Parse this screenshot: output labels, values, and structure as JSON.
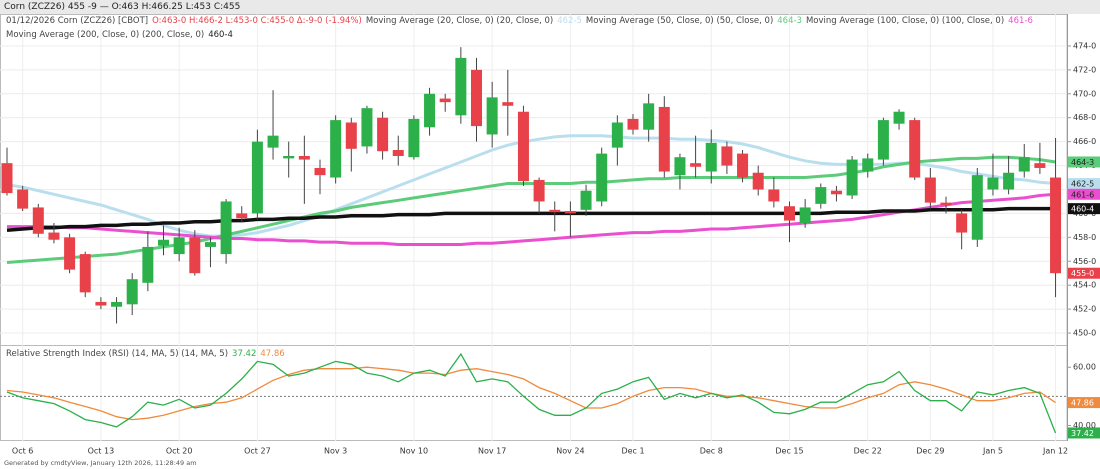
{
  "header": {
    "top_bar": "Corn (ZCZ26) 455 -9 — O:463 H:466.25 L:453 C:455",
    "footer": "Generated by cmdtyView, January 12th 2026, 11:28:49 am"
  },
  "chart_data": [
    {
      "type": "candlestick",
      "title": "01/12/2026 Corn (ZCZ26) [CBOT]",
      "ohlc_text": "O:463-0 H:466-2 L:453-0 C:455-0 Δ:-9-0 (-1.94%)",
      "up_color": "#2bb04a",
      "down_color": "#e8414a",
      "last_label": "455-0",
      "categories": [
        null,
        "Oct 6",
        null,
        null,
        null,
        null,
        "Oct 13",
        null,
        null,
        null,
        null,
        "Oct 20",
        null,
        null,
        null,
        null,
        "Oct 27",
        null,
        null,
        null,
        null,
        "Nov 3",
        null,
        null,
        null,
        null,
        "Nov 10",
        null,
        null,
        null,
        null,
        "Nov 17",
        null,
        null,
        null,
        null,
        "Nov 24",
        null,
        null,
        null,
        "Dec 1",
        null,
        null,
        null,
        null,
        "Dec 8",
        null,
        null,
        null,
        null,
        "Dec 15",
        null,
        null,
        null,
        null,
        "Dec 22",
        null,
        null,
        null,
        "Dec 29",
        null,
        null,
        null,
        "Jan 5",
        null,
        null,
        null,
        "Jan 12"
      ],
      "candles": [
        [
          464.2,
          465.5,
          461.5,
          461.7
        ],
        [
          462,
          462.3,
          460.2,
          460.4
        ],
        [
          460.5,
          460.8,
          458,
          458.3
        ],
        [
          458.4,
          459.2,
          457.5,
          457.8
        ],
        [
          458,
          458.3,
          455,
          455.3
        ],
        [
          456.6,
          456.8,
          453,
          453.4
        ],
        [
          452.6,
          453,
          452,
          452.3
        ],
        [
          452.2,
          453,
          450.8,
          452.6
        ],
        [
          452.4,
          455,
          451.5,
          454.5
        ],
        [
          454.2,
          458.5,
          453.5,
          457.2
        ],
        [
          457.3,
          459,
          456.5,
          457.8
        ],
        [
          456.6,
          458.8,
          456,
          458
        ],
        [
          458,
          458.6,
          454.8,
          455
        ],
        [
          457.2,
          458,
          455.5,
          457.6
        ],
        [
          456.6,
          461.2,
          455.8,
          461
        ],
        [
          460,
          460.6,
          459.3,
          459.6
        ],
        [
          460,
          467,
          459.5,
          466
        ],
        [
          465.5,
          470.3,
          464.5,
          466.5
        ],
        [
          464.6,
          466,
          463,
          464.8
        ],
        [
          464.8,
          466.5,
          460.8,
          464.5
        ],
        [
          463.8,
          464.5,
          461.6,
          463.2
        ],
        [
          463,
          468.2,
          462.5,
          467.8
        ],
        [
          467.6,
          468,
          463.5,
          465.4
        ],
        [
          465.6,
          469,
          465,
          468.8
        ],
        [
          468,
          468.5,
          464.5,
          465.2
        ],
        [
          465.3,
          466.5,
          464,
          464.8
        ],
        [
          464.7,
          468.2,
          464.5,
          467.9
        ],
        [
          467.2,
          470.5,
          466.5,
          470
        ],
        [
          469.6,
          470,
          468.5,
          469.3
        ],
        [
          468.2,
          473.9,
          467.5,
          473
        ],
        [
          472,
          473,
          466,
          467.3
        ],
        [
          466.6,
          471,
          465.5,
          469.7
        ],
        [
          469.3,
          472,
          466.5,
          469
        ],
        [
          468.5,
          469,
          462.3,
          462.7
        ],
        [
          462.8,
          463,
          460,
          461
        ],
        [
          460.3,
          461,
          458.5,
          460.1
        ],
        [
          460.2,
          461,
          458,
          460
        ],
        [
          460.3,
          462.4,
          459.8,
          461.9
        ],
        [
          461,
          465.5,
          460.6,
          465
        ],
        [
          465.5,
          468.2,
          464,
          467.6
        ],
        [
          467.9,
          468.3,
          466.6,
          467
        ],
        [
          467,
          470,
          466,
          469.2
        ],
        [
          468.9,
          469.8,
          463,
          463.5
        ],
        [
          463.2,
          465,
          462,
          464.7
        ],
        [
          464.2,
          466.5,
          463,
          463.9
        ],
        [
          463.5,
          467,
          462.5,
          465.9
        ],
        [
          465.6,
          466,
          463.3,
          464
        ],
        [
          465,
          465.3,
          462.6,
          463
        ],
        [
          463.4,
          464,
          461.5,
          462
        ],
        [
          462,
          463,
          460.5,
          461
        ],
        [
          460.6,
          461,
          457.6,
          459.4
        ],
        [
          459.2,
          461.2,
          458.8,
          460.5
        ],
        [
          460.8,
          462.5,
          460.4,
          462.2
        ],
        [
          461.9,
          462.3,
          461,
          461.6
        ],
        [
          461.5,
          464.8,
          461.2,
          464.5
        ],
        [
          463.5,
          465,
          463,
          464.6
        ],
        [
          464.5,
          468,
          464,
          467.8
        ],
        [
          467.5,
          468.7,
          467,
          468.5
        ],
        [
          467.8,
          468,
          462.8,
          463
        ],
        [
          463,
          463.8,
          460.4,
          460.9
        ],
        [
          460.9,
          461.4,
          460,
          460.7
        ],
        [
          460,
          460.3,
          457,
          458.4
        ],
        [
          457.8,
          463.8,
          457.2,
          463.2
        ],
        [
          462,
          465,
          461.5,
          463
        ],
        [
          462,
          464.8,
          461.6,
          463.4
        ],
        [
          463.5,
          465.8,
          463,
          464.7
        ],
        [
          464.2,
          465.9,
          463.3,
          463.8
        ],
        [
          463,
          466.3,
          453,
          455
        ]
      ],
      "ylim": [
        449,
        475.5
      ],
      "yticks": [
        {
          "value": 450,
          "label": "450-0"
        },
        {
          "value": 452,
          "label": "452-0"
        },
        {
          "value": 454,
          "label": "454-0"
        },
        {
          "value": 456,
          "label": "456-0"
        },
        {
          "value": 458,
          "label": "458-0"
        },
        {
          "value": 460,
          "label": "460-0"
        },
        {
          "value": 462,
          "label": "462-0"
        },
        {
          "value": 464,
          "label": "464-0"
        },
        {
          "value": 466,
          "label": "466-0"
        },
        {
          "value": 468,
          "label": "468-0"
        },
        {
          "value": 470,
          "label": "470-0"
        },
        {
          "value": 472,
          "label": "472-0"
        },
        {
          "value": 474,
          "label": "474-0"
        }
      ],
      "grid": true,
      "series": [
        {
          "name": "Moving Average (20, Close, 0) (20, Close, 0)",
          "color": "#b9dfef",
          "last_label": "462-5",
          "values": [
            462.4,
            462.2,
            461.9,
            461.6,
            461.3,
            461.0,
            460.7,
            460.3,
            459.9,
            459.5,
            459.0,
            458.6,
            458.3,
            458.1,
            458.1,
            458.2,
            458.4,
            458.7,
            459.0,
            459.4,
            459.8,
            460.3,
            460.8,
            461.3,
            461.8,
            462.3,
            462.8,
            463.3,
            463.8,
            464.3,
            464.8,
            465.3,
            465.7,
            466.0,
            466.2,
            466.4,
            466.5,
            466.5,
            466.5,
            466.4,
            466.3,
            466.3,
            466.3,
            466.2,
            466.2,
            466.1,
            466.0,
            465.8,
            465.5,
            465.1,
            464.7,
            464.4,
            464.2,
            464.1,
            464.1,
            464.1,
            464.1,
            464.2,
            464.2,
            464.0,
            463.8,
            463.5,
            463.3,
            463.1,
            462.9,
            462.8,
            462.6,
            462.5
          ]
        },
        {
          "name": "Moving Average (50, Close, 0) (50, Close, 0)",
          "color": "#5ccb7a",
          "last_label": "464-3",
          "values": [
            455.9,
            456.0,
            456.1,
            456.2,
            456.3,
            456.4,
            456.5,
            456.6,
            456.8,
            457.0,
            457.2,
            457.4,
            457.6,
            457.9,
            458.2,
            458.5,
            458.8,
            459.1,
            459.4,
            459.7,
            460.0,
            460.2,
            460.5,
            460.7,
            460.9,
            461.1,
            461.3,
            461.5,
            461.7,
            461.9,
            462.1,
            462.3,
            462.5,
            462.5,
            462.5,
            462.5,
            462.5,
            462.6,
            462.6,
            462.7,
            462.8,
            462.9,
            462.9,
            463.0,
            463.0,
            463.0,
            463.0,
            463.0,
            463.0,
            463.0,
            463.0,
            463.0,
            463.1,
            463.2,
            463.4,
            463.6,
            463.9,
            464.1,
            464.3,
            464.4,
            464.5,
            464.6,
            464.6,
            464.7,
            464.7,
            464.6,
            464.5,
            464.3
          ]
        },
        {
          "name": "Moving Average (100, Close, 0) (100, Close, 0)",
          "color": "#ea4fd0",
          "last_label": "461-6",
          "values": [
            458.9,
            458.9,
            458.9,
            458.9,
            458.8,
            458.8,
            458.7,
            458.6,
            458.5,
            458.4,
            458.3,
            458.2,
            458.1,
            458.0,
            457.9,
            457.9,
            457.8,
            457.8,
            457.7,
            457.7,
            457.6,
            457.6,
            457.5,
            457.5,
            457.5,
            457.4,
            457.4,
            457.4,
            457.4,
            457.4,
            457.5,
            457.5,
            457.6,
            457.7,
            457.8,
            457.9,
            458.0,
            458.1,
            458.2,
            458.3,
            458.4,
            458.4,
            458.5,
            458.5,
            458.6,
            458.7,
            458.7,
            458.8,
            458.9,
            459.0,
            459.1,
            459.2,
            459.3,
            459.4,
            459.5,
            459.7,
            459.9,
            460.1,
            460.3,
            460.5,
            460.7,
            460.9,
            461.0,
            461.1,
            461.2,
            461.3,
            461.5,
            461.6
          ]
        },
        {
          "name": "Moving Average (200, Close, 0) (200, Close, 0)",
          "color": "#111111",
          "last_label": "460-4",
          "values": [
            458.6,
            458.7,
            458.8,
            458.8,
            458.9,
            458.9,
            459.0,
            459.0,
            459.1,
            459.1,
            459.2,
            459.2,
            459.3,
            459.3,
            459.4,
            459.4,
            459.5,
            459.5,
            459.6,
            459.6,
            459.7,
            459.7,
            459.8,
            459.8,
            459.8,
            459.9,
            459.9,
            459.9,
            460.0,
            460.0,
            460.0,
            460.0,
            460.0,
            460.0,
            460.0,
            460.0,
            460.0,
            460.0,
            460.0,
            460.0,
            460.0,
            460.0,
            460.0,
            460.0,
            460.0,
            460.0,
            460.0,
            460.0,
            460.0,
            460.0,
            460.0,
            460.0,
            460.0,
            460.1,
            460.1,
            460.1,
            460.2,
            460.2,
            460.2,
            460.3,
            460.3,
            460.3,
            460.3,
            460.3,
            460.4,
            460.4,
            460.4,
            460.4
          ]
        }
      ]
    },
    {
      "type": "line",
      "title": "Relative Strength Index (RSI) (14, MA, 5) (14, MA, 5)",
      "ylim": [
        35,
        67.3
      ],
      "yticks": [
        {
          "value": 40,
          "label": "40.00"
        },
        {
          "value": 60,
          "label": "60.00"
        }
      ],
      "midline": 50,
      "series": [
        {
          "name": "RSI",
          "color": "#f08a3c",
          "values": [
            52,
            51.5,
            50.5,
            49.5,
            48,
            46.5,
            45,
            43,
            42,
            42.5,
            43.5,
            45,
            46.5,
            47.5,
            48,
            49.5,
            52.5,
            55.5,
            57.5,
            59,
            59.5,
            59.5,
            59.5,
            60,
            59.5,
            59,
            58,
            58,
            57.5,
            59,
            59.5,
            58.5,
            57.5,
            56,
            53,
            51,
            48.5,
            46,
            46,
            47.5,
            50,
            52,
            53,
            53,
            52.5,
            51,
            50,
            50,
            49.5,
            48.5,
            47.5,
            46.5,
            46,
            46,
            47.5,
            49.5,
            51,
            54,
            55,
            54,
            52.5,
            50.5,
            48.5,
            48.5,
            49.5,
            51,
            51.5,
            47.86
          ]
        },
        {
          "name": "RSI MA",
          "color": "#2bb04a",
          "values": [
            51.5,
            49.5,
            48.5,
            47.5,
            45,
            42,
            41,
            39.5,
            43,
            48,
            47,
            49,
            46,
            47,
            51,
            56,
            62,
            61,
            57,
            58,
            60,
            62,
            61,
            58,
            57,
            55,
            58,
            59,
            57,
            64.5,
            55,
            56,
            55,
            50,
            45.5,
            43.5,
            43.5,
            46,
            51,
            52.5,
            55,
            56.5,
            49,
            51,
            49.5,
            51,
            49.5,
            50.5,
            48,
            44.5,
            44,
            45.5,
            48,
            48,
            51,
            54,
            55,
            58.5,
            52,
            48.5,
            48.5,
            45,
            51.5,
            50.5,
            52,
            53,
            51,
            37.42
          ]
        }
      ]
    }
  ]
}
